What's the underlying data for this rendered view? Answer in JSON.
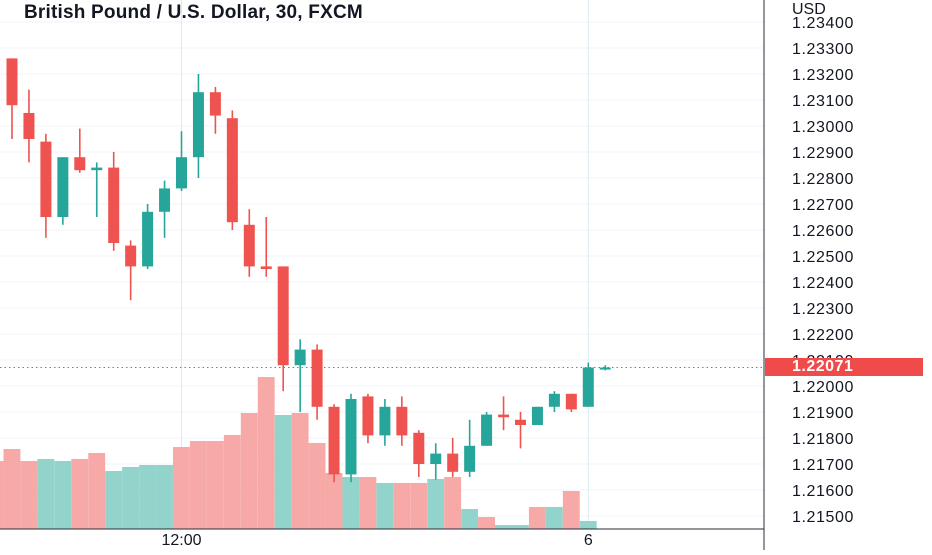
{
  "header": {
    "title": "British Pound / U.S. Dollar, 30, FXCM",
    "currency": "USD"
  },
  "colors": {
    "up": "#26a69a",
    "down": "#ef5350",
    "up_volume": "#92d3cc",
    "down_volume": "#f7a9a7",
    "grid": "#f0f3fa",
    "axis_line": "#2a2e39",
    "last_price": "#f04b4b"
  },
  "chart_data": {
    "type": "candlestick",
    "symbol": "GBPUSD",
    "timeframe": "30",
    "source": "FXCM",
    "y_axis": {
      "ticks": [
        "1.23400",
        "1.23300",
        "1.23200",
        "1.23100",
        "1.23000",
        "1.22900",
        "1.22800",
        "1.22700",
        "1.22600",
        "1.22500",
        "1.22400",
        "1.22300",
        "1.22200",
        "1.22100",
        "1.22000",
        "1.21900",
        "1.21800",
        "1.21700",
        "1.21600",
        "1.21500"
      ],
      "ylim": [
        1.2145,
        1.2342
      ]
    },
    "x_axis": {
      "labels": [
        {
          "text": "12:00",
          "index": 10
        },
        {
          "text": "6",
          "index": 34
        }
      ],
      "vertical_grid_at": [
        10,
        34
      ]
    },
    "last_price": "1.22071",
    "candles": [
      {
        "o": 1.2326,
        "h": 1.2326,
        "l": 1.2295,
        "c": 1.2308
      },
      {
        "o": 1.2305,
        "h": 1.2314,
        "l": 1.2286,
        "c": 1.2295
      },
      {
        "o": 1.2294,
        "h": 1.2297,
        "l": 1.2257,
        "c": 1.2265
      },
      {
        "o": 1.2265,
        "h": 1.2288,
        "l": 1.2262,
        "c": 1.2288
      },
      {
        "o": 1.2288,
        "h": 1.2299,
        "l": 1.2282,
        "c": 1.2283
      },
      {
        "o": 1.2283,
        "h": 1.2286,
        "l": 1.2265,
        "c": 1.2284
      },
      {
        "o": 1.2284,
        "h": 1.229,
        "l": 1.2252,
        "c": 1.2255
      },
      {
        "o": 1.2254,
        "h": 1.2256,
        "l": 1.2233,
        "c": 1.2246
      },
      {
        "o": 1.2246,
        "h": 1.227,
        "l": 1.2245,
        "c": 1.2267
      },
      {
        "o": 1.2267,
        "h": 1.2279,
        "l": 1.2257,
        "c": 1.2276
      },
      {
        "o": 1.2276,
        "h": 1.2298,
        "l": 1.2275,
        "c": 1.2288
      },
      {
        "o": 1.2288,
        "h": 1.232,
        "l": 1.228,
        "c": 1.2313
      },
      {
        "o": 1.2313,
        "h": 1.2315,
        "l": 1.2297,
        "c": 1.2304
      },
      {
        "o": 1.2303,
        "h": 1.2306,
        "l": 1.226,
        "c": 1.2263
      },
      {
        "o": 1.2262,
        "h": 1.2268,
        "l": 1.2242,
        "c": 1.2246
      },
      {
        "o": 1.2246,
        "h": 1.2265,
        "l": 1.2242,
        "c": 1.2245
      },
      {
        "o": 1.2246,
        "h": 1.2246,
        "l": 1.2198,
        "c": 1.2208
      },
      {
        "o": 1.2208,
        "h": 1.2218,
        "l": 1.219,
        "c": 1.2214
      },
      {
        "o": 1.2214,
        "h": 1.2216,
        "l": 1.2187,
        "c": 1.2192
      },
      {
        "o": 1.2192,
        "h": 1.2193,
        "l": 1.2163,
        "c": 1.2166
      },
      {
        "o": 1.2166,
        "h": 1.2197,
        "l": 1.2163,
        "c": 1.2195
      },
      {
        "o": 1.2196,
        "h": 1.2197,
        "l": 1.2178,
        "c": 1.2181
      },
      {
        "o": 1.2181,
        "h": 1.2195,
        "l": 1.2177,
        "c": 1.2192
      },
      {
        "o": 1.2192,
        "h": 1.2196,
        "l": 1.2177,
        "c": 1.2181
      },
      {
        "o": 1.2182,
        "h": 1.2183,
        "l": 1.2165,
        "c": 1.217
      },
      {
        "o": 1.217,
        "h": 1.2178,
        "l": 1.2164,
        "c": 1.2174
      },
      {
        "o": 1.2174,
        "h": 1.218,
        "l": 1.2165,
        "c": 1.2167
      },
      {
        "o": 1.2167,
        "h": 1.2187,
        "l": 1.2165,
        "c": 1.2177
      },
      {
        "o": 1.2177,
        "h": 1.219,
        "l": 1.2177,
        "c": 1.2189
      },
      {
        "o": 1.2189,
        "h": 1.2196,
        "l": 1.2183,
        "c": 1.2188
      },
      {
        "o": 1.2187,
        "h": 1.219,
        "l": 1.2176,
        "c": 1.2185
      },
      {
        "o": 1.2185,
        "h": 1.2192,
        "l": 1.2185,
        "c": 1.2192
      },
      {
        "o": 1.2192,
        "h": 1.2198,
        "l": 1.219,
        "c": 1.2197
      },
      {
        "o": 1.2197,
        "h": 1.2197,
        "l": 1.219,
        "c": 1.2191
      },
      {
        "o": 1.2192,
        "h": 1.2209,
        "l": 1.2192,
        "c": 1.22071
      },
      {
        "o": 1.22071,
        "h": 1.2208,
        "l": 1.2206,
        "c": 1.22071
      }
    ],
    "volume_leading": [
      0.34,
      0.34
    ],
    "volume_leading_up": [
      false,
      false
    ],
    "volumes": [
      0.4,
      0.34,
      0.35,
      0.34,
      0.35,
      0.38,
      0.29,
      0.31,
      0.32,
      0.32,
      0.41,
      0.44,
      0.44,
      0.47,
      0.58,
      0.76,
      0.57,
      0.58,
      0.43,
      0.28,
      0.26,
      0.26,
      0.23,
      0.23,
      0.23,
      0.25,
      0.26,
      0.1,
      0.06,
      0.02,
      0.02,
      0.11,
      0.11,
      0.19,
      0.04,
      0.0
    ],
    "volume_up": [
      false,
      false,
      true,
      true,
      false,
      false,
      true,
      true,
      true,
      true,
      false,
      false,
      false,
      false,
      false,
      false,
      true,
      false,
      false,
      false,
      true,
      false,
      true,
      false,
      false,
      true,
      false,
      true,
      false,
      true,
      true,
      false,
      true,
      false,
      true,
      false
    ]
  }
}
